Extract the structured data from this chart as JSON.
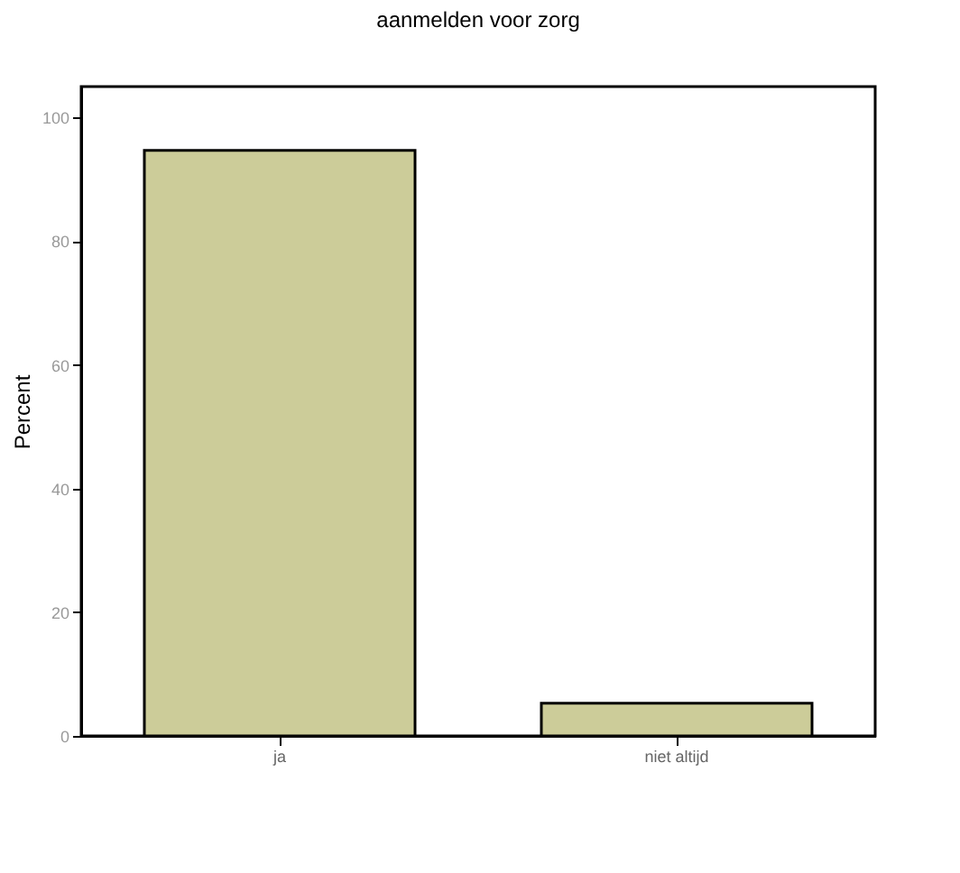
{
  "chart_data": {
    "type": "bar",
    "title": "aanmelden voor zorg",
    "ylabel": "Percent",
    "categories": [
      "ja",
      "niet altijd"
    ],
    "values": [
      94.7,
      5.3
    ],
    "color": "#cccc99",
    "ylim": [
      0,
      105
    ],
    "yticks": [
      0,
      20,
      40,
      60,
      80,
      100
    ],
    "grid": false
  }
}
